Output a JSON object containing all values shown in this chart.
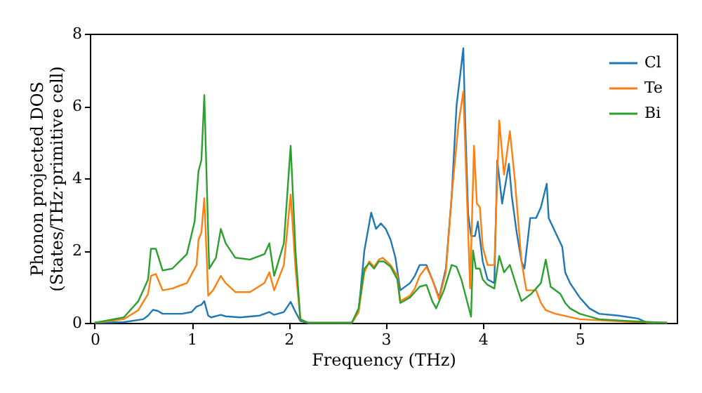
{
  "chart_data": {
    "type": "line",
    "xlabel": "Frequency (THz)",
    "ylabel": "Phonon projected DOS\n(States/THz·primitive cell)",
    "xlim": [
      -0.05,
      6.0
    ],
    "ylim": [
      0,
      8
    ],
    "xticks": [
      0,
      1,
      2,
      3,
      4,
      5
    ],
    "yticks": [
      0,
      2,
      4,
      6,
      8
    ],
    "grid": false,
    "legend": "top right",
    "marker": "none",
    "line_style": "solid",
    "series": [
      {
        "name": "Cl",
        "color": "#1f77b4",
        "x": [
          0,
          0.3,
          0.5,
          0.55,
          0.6,
          0.65,
          0.7,
          0.9,
          1.0,
          1.05,
          1.1,
          1.13,
          1.17,
          1.2,
          1.3,
          1.35,
          1.5,
          1.7,
          1.8,
          1.85,
          1.95,
          2.02,
          2.07,
          2.12,
          2.2,
          2.65,
          2.72,
          2.78,
          2.85,
          2.9,
          2.95,
          3.0,
          3.05,
          3.1,
          3.15,
          3.25,
          3.3,
          3.35,
          3.42,
          3.48,
          3.55,
          3.62,
          3.68,
          3.73,
          3.8,
          3.82,
          3.85,
          3.88,
          3.92,
          3.95,
          4.0,
          4.05,
          4.12,
          4.15,
          4.2,
          4.27,
          4.3,
          4.35,
          4.4,
          4.43,
          4.49,
          4.55,
          4.6,
          4.66,
          4.68,
          4.75,
          4.82,
          4.85,
          4.9,
          5.0,
          5.1,
          5.2,
          5.4,
          5.6,
          5.7,
          5.9
        ],
        "values": [
          0,
          0.02,
          0.1,
          0.2,
          0.36,
          0.33,
          0.25,
          0.25,
          0.3,
          0.45,
          0.5,
          0.6,
          0.2,
          0.15,
          0.22,
          0.18,
          0.15,
          0.2,
          0.3,
          0.22,
          0.3,
          0.58,
          0.3,
          0.05,
          0,
          0,
          0.3,
          2.0,
          3.05,
          2.6,
          2.75,
          2.6,
          2.3,
          1.8,
          0.9,
          1.1,
          1.3,
          1.6,
          1.6,
          1.2,
          0.7,
          1.5,
          3.5,
          6.0,
          7.6,
          5.5,
          3.0,
          2.4,
          2.4,
          2.8,
          1.7,
          1.2,
          1.1,
          4.5,
          3.3,
          4.4,
          3.5,
          2.5,
          1.7,
          1.5,
          2.9,
          2.9,
          3.2,
          3.85,
          2.9,
          2.5,
          2.1,
          1.4,
          1.1,
          0.7,
          0.4,
          0.25,
          0.2,
          0.12,
          0,
          0
        ]
      },
      {
        "name": "Te",
        "color": "#ff7f0e",
        "x": [
          0,
          0.3,
          0.45,
          0.55,
          0.58,
          0.63,
          0.7,
          0.8,
          0.95,
          1.05,
          1.07,
          1.1,
          1.13,
          1.17,
          1.22,
          1.3,
          1.35,
          1.45,
          1.6,
          1.75,
          1.8,
          1.85,
          1.95,
          2.02,
          2.07,
          2.12,
          2.2,
          2.65,
          2.72,
          2.78,
          2.83,
          2.88,
          2.93,
          2.97,
          3.05,
          3.12,
          3.15,
          3.25,
          3.3,
          3.35,
          3.42,
          3.48,
          3.55,
          3.62,
          3.68,
          3.75,
          3.8,
          3.87,
          3.91,
          3.94,
          3.97,
          4.0,
          4.05,
          4.12,
          4.17,
          4.22,
          4.28,
          4.33,
          4.4,
          4.45,
          4.55,
          4.6,
          4.65,
          4.7,
          4.75,
          5.0,
          5.5,
          5.9
        ],
        "values": [
          0,
          0.1,
          0.35,
          0.8,
          1.3,
          1.35,
          0.9,
          0.95,
          1.1,
          1.6,
          2.3,
          2.5,
          3.45,
          0.75,
          0.9,
          1.3,
          1.1,
          0.85,
          0.85,
          1.1,
          1.4,
          0.9,
          1.6,
          3.55,
          1.5,
          0.1,
          0,
          0,
          0.3,
          1.4,
          1.7,
          1.55,
          1.75,
          1.8,
          1.6,
          1.3,
          0.6,
          0.75,
          0.95,
          1.3,
          1.55,
          1.2,
          0.65,
          1.4,
          3.5,
          5.5,
          6.4,
          0.95,
          4.9,
          3.3,
          3.2,
          2.1,
          1.6,
          1.6,
          5.6,
          4.1,
          5.3,
          4.0,
          1.7,
          0.9,
          0.9,
          0.55,
          0.35,
          0.3,
          0.25,
          0.1,
          0.03,
          0
        ]
      },
      {
        "name": "Bi",
        "color": "#2ca02c",
        "x": [
          0,
          0.3,
          0.45,
          0.55,
          0.58,
          0.63,
          0.7,
          0.8,
          0.95,
          1.03,
          1.07,
          1.1,
          1.13,
          1.18,
          1.25,
          1.3,
          1.35,
          1.45,
          1.6,
          1.75,
          1.8,
          1.85,
          1.95,
          2.02,
          2.07,
          2.12,
          2.2,
          2.65,
          2.72,
          2.78,
          2.83,
          2.88,
          2.93,
          2.98,
          3.05,
          3.12,
          3.15,
          3.25,
          3.35,
          3.42,
          3.48,
          3.52,
          3.6,
          3.68,
          3.73,
          3.78,
          3.88,
          3.9,
          3.93,
          3.97,
          4.0,
          4.05,
          4.12,
          4.17,
          4.22,
          4.28,
          4.35,
          4.4,
          4.5,
          4.6,
          4.65,
          4.7,
          4.8,
          4.85,
          4.9,
          5.0,
          5.2,
          5.5,
          5.9
        ],
        "values": [
          0,
          0.15,
          0.6,
          1.2,
          2.05,
          2.05,
          1.45,
          1.5,
          1.9,
          2.8,
          4.2,
          4.5,
          6.3,
          1.5,
          1.8,
          2.6,
          2.2,
          1.8,
          1.75,
          1.9,
          2.2,
          1.3,
          2.2,
          4.9,
          2.0,
          0.1,
          0,
          0,
          0.4,
          1.5,
          1.65,
          1.5,
          1.7,
          1.7,
          1.55,
          1.2,
          0.55,
          0.7,
          1.0,
          1.05,
          0.6,
          0.4,
          0.9,
          1.6,
          1.55,
          1.2,
          0.17,
          2.0,
          1.5,
          1.5,
          1.2,
          1.05,
          0.95,
          1.85,
          1.4,
          1.6,
          1.0,
          0.6,
          0.8,
          1.1,
          1.75,
          1.0,
          0.8,
          0.55,
          0.4,
          0.25,
          0.1,
          0.05,
          0
        ]
      }
    ]
  }
}
